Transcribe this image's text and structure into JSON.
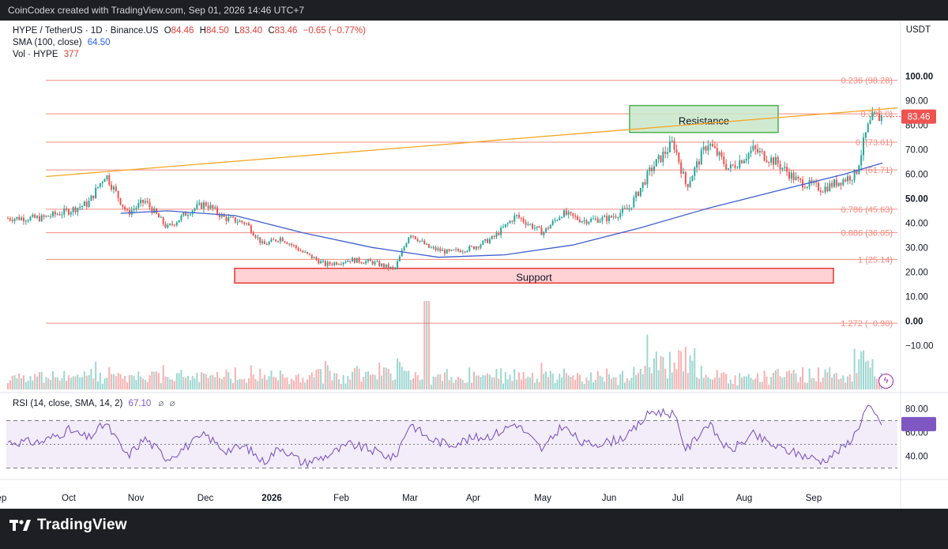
{
  "header": {
    "attribution": "CoinCodex created with TradingView.com, Sep 01, 2026 14:46 UTC+7"
  },
  "legend": {
    "symbol": "HYPE / TetherUS · 1D · Binance.US",
    "o_label": "O",
    "o": "84.46",
    "h_label": "H",
    "h": "84.50",
    "l_label": "L",
    "l": "83.40",
    "c_label": "C",
    "c": "83.46",
    "change": "−0.65 (−0.77%)",
    "sma_label": "SMA (100, close)",
    "sma_value": "64.50",
    "vol_label": "Vol · HYPE",
    "vol_value": "377"
  },
  "currency": "USDT",
  "rsi_legend": {
    "label": "RSI (14, close, SMA, 14, 2)",
    "value": "67.10"
  },
  "footer": {
    "brand": "TradingView"
  },
  "colors": {
    "up": "#26a69a",
    "down": "#ef5350",
    "sma": "#3f5fd0",
    "trend": "#f5a623",
    "rsi": "#7e57c2",
    "fib": "#f28b82",
    "resistance_fill": "#c8e6c9",
    "resistance_stroke": "#4caf50",
    "support_fill": "#ffcdd2",
    "support_stroke": "#e53935"
  },
  "chart_data": {
    "type": "candlestick",
    "symbol": "HYPE / TetherUS",
    "timeframe": "1D",
    "x_labels": [
      "Sep",
      "Oct",
      "Nov",
      "Dec",
      "2026",
      "Feb",
      "Mar",
      "Apr",
      "May",
      "Jun",
      "Jul",
      "Aug",
      "Sep"
    ],
    "y_ticks": [
      "100.00",
      "90.00",
      "80.00",
      "70.00",
      "60.00",
      "50.00",
      "40.00",
      "30.00",
      "20.00",
      "10.00",
      "0.00",
      "−10.00"
    ],
    "ylim": [
      -17,
      104
    ],
    "last_price": "83.46",
    "price_path": [
      [
        "Aug 20",
        42
      ],
      [
        "Sep 01",
        45
      ],
      [
        "Sep 10",
        48
      ],
      [
        "Sep 18",
        60
      ],
      [
        "Sep 28",
        44
      ],
      [
        "Oct 05",
        49
      ],
      [
        "Oct 15",
        38
      ],
      [
        "Oct 25",
        45
      ],
      [
        "Nov 01",
        48
      ],
      [
        "Nov 10",
        42
      ],
      [
        "Nov 20",
        40
      ],
      [
        "Nov 28",
        31
      ],
      [
        "Dec 05",
        34
      ],
      [
        "Dec 15",
        28
      ],
      [
        "Dec 25",
        23
      ],
      [
        "Jan 05",
        25
      ],
      [
        "Jan 15",
        24
      ],
      [
        "Jan 25",
        21
      ],
      [
        "Feb 01",
        36
      ],
      [
        "Feb 10",
        30
      ],
      [
        "Feb 20",
        28
      ],
      [
        "Mar 01",
        30
      ],
      [
        "Mar 10",
        34
      ],
      [
        "Mar 20",
        43
      ],
      [
        "Apr 01",
        36
      ],
      [
        "Apr 10",
        44
      ],
      [
        "Apr 20",
        41
      ],
      [
        "May 01",
        42
      ],
      [
        "May 10",
        46
      ],
      [
        "May 20",
        62
      ],
      [
        "May 30",
        73
      ],
      [
        "Jun 05",
        55
      ],
      [
        "Jun 15",
        73
      ],
      [
        "Jun 25",
        62
      ],
      [
        "Jul 05",
        70
      ],
      [
        "Jul 15",
        65
      ],
      [
        "Jul 25",
        57
      ],
      [
        "Aug 05",
        54
      ],
      [
        "Aug 15",
        58
      ],
      [
        "Aug 20",
        60
      ],
      [
        "Aug 25",
        78
      ],
      [
        "Aug 28",
        83
      ],
      [
        "Sep 01",
        83.46
      ]
    ],
    "sma100": {
      "name": "SMA (100, close)",
      "value": 64.5,
      "path": [
        [
          "Sep 25",
          44
        ],
        [
          "Oct 15",
          45
        ],
        [
          "Nov 15",
          43
        ],
        [
          "Dec 15",
          36
        ],
        [
          "Jan 15",
          30
        ],
        [
          "Feb 15",
          26
        ],
        [
          "Mar 15",
          27
        ],
        [
          "Apr 15",
          31
        ],
        [
          "May 15",
          38
        ],
        [
          "Jun 15",
          46
        ],
        [
          "Jul 15",
          53
        ],
        [
          "Aug 15",
          60
        ],
        [
          "Sep 01",
          64.5
        ]
      ]
    },
    "trendline": {
      "from": [
        "Aug 20",
        59
      ],
      "to": [
        "Sep 01",
        87
      ]
    },
    "fib_levels": [
      {
        "label": "0.236 (98.28)",
        "value": 98.28
      },
      {
        "label": "0.382",
        "suffix": "0)",
        "value": 84.6
      },
      {
        "label": "0.",
        "suffix": "(73.01)",
        "value": 73.01
      },
      {
        "label": "(61.71)",
        "value": 61.71
      },
      {
        "label": "0.786 (45.63)",
        "value": 45.63
      },
      {
        "label": "0.886 (36.05)",
        "value": 36.05
      },
      {
        "label": "1 (25.14)",
        "value": 25.14
      },
      {
        "label": "1.272 (−0.90)",
        "value": -0.9
      }
    ],
    "zones": [
      {
        "label": "Resistance",
        "from": 77,
        "to": 88
      },
      {
        "label": "Support",
        "from": 15.5,
        "to": 21.5
      }
    ],
    "rsi": {
      "label": "RSI (14, close, SMA, 14, 2)",
      "value": 67.1,
      "y_ticks": [
        "80.00",
        "60.00",
        "40.00"
      ],
      "bands": [
        70,
        50,
        30
      ],
      "ylim": [
        25,
        85
      ],
      "path": [
        [
          "Aug 20",
          52
        ],
        [
          "Sep 01",
          62
        ],
        [
          "Sep 10",
          55
        ],
        [
          "Sep 18",
          68
        ],
        [
          "Sep 28",
          40
        ],
        [
          "Oct 05",
          55
        ],
        [
          "Oct 15",
          38
        ],
        [
          "Oct 25",
          50
        ],
        [
          "Nov 01",
          58
        ],
        [
          "Nov 10",
          45
        ],
        [
          "Nov 20",
          48
        ],
        [
          "Nov 28",
          35
        ],
        [
          "Dec 05",
          48
        ],
        [
          "Dec 15",
          34
        ],
        [
          "Dec 25",
          40
        ],
        [
          "Jan 05",
          50
        ],
        [
          "Jan 15",
          45
        ],
        [
          "Jan 25",
          38
        ],
        [
          "Feb 01",
          68
        ],
        [
          "Feb 10",
          55
        ],
        [
          "Feb 20",
          50
        ],
        [
          "Mar 01",
          55
        ],
        [
          "Mar 10",
          58
        ],
        [
          "Mar 20",
          68
        ],
        [
          "Apr 01",
          45
        ],
        [
          "Apr 10",
          66
        ],
        [
          "Apr 20",
          50
        ],
        [
          "May 01",
          52
        ],
        [
          "May 10",
          58
        ],
        [
          "May 20",
          78
        ],
        [
          "May 30",
          76
        ],
        [
          "Jun 05",
          45
        ],
        [
          "Jun 15",
          68
        ],
        [
          "Jun 25",
          44
        ],
        [
          "Jul 05",
          58
        ],
        [
          "Jul 15",
          48
        ],
        [
          "Jul 25",
          42
        ],
        [
          "Aug 05",
          36
        ],
        [
          "Aug 15",
          48
        ],
        [
          "Aug 20",
          60
        ],
        [
          "Aug 25",
          82
        ],
        [
          "Aug 28",
          76
        ],
        [
          "Sep 01",
          67.1
        ]
      ]
    }
  }
}
